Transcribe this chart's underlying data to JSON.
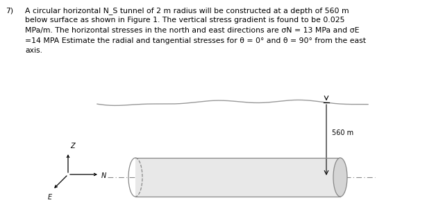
{
  "title_num": "7)",
  "text_line1": "A circular horizontal N_S tunnel of 2 m radius will be constructed at a depth of 560 m",
  "text_line2": "below surface as shown in Figure 1. The vertical stress gradient is found to be 0.025",
  "text_line3": "MPa/m. The horizontal stresses in the north and east directions are σN = 13 MPa and σE",
  "text_line4": "=14 MPA Estimate the radial and tangential stresses for θ = 0° and θ = 90° from the east",
  "text_line5": "axis.",
  "depth_label": "560 m",
  "axis_label_z": "Z",
  "axis_label_n": "N",
  "axis_label_e": "E",
  "bg_color": "#ffffff",
  "text_color": "#000000",
  "line_color": "#000000",
  "surface_color": "#999999",
  "tunnel_edge_color": "#888888",
  "tunnel_face_color": "#e8e8e8",
  "dashed_color": "#888888",
  "font_size_text": 7.8,
  "font_size_label": 7.0,
  "font_size_dim": 7.0
}
